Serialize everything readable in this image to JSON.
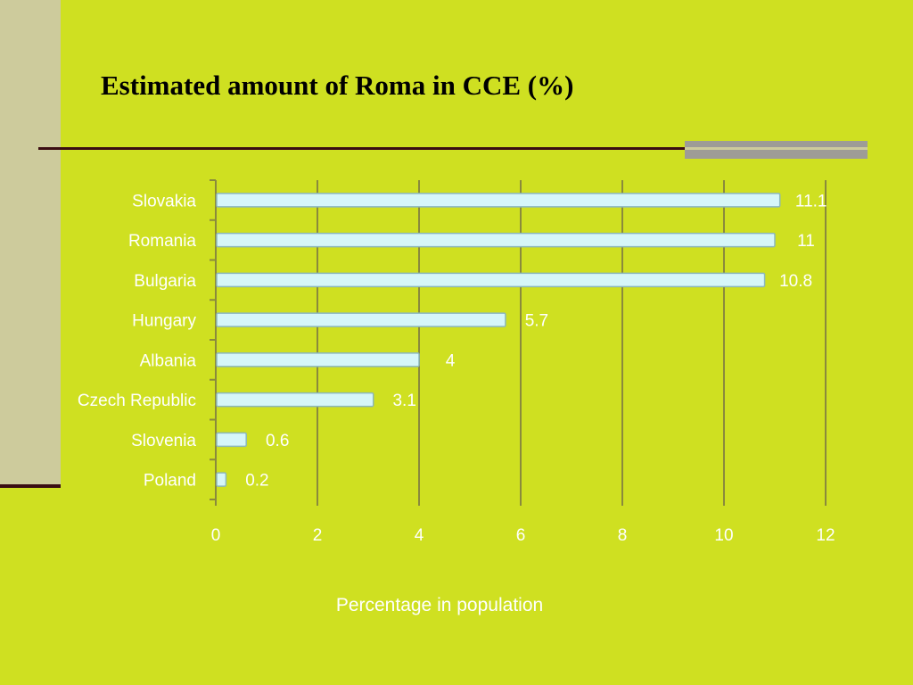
{
  "title": "Estimated amount of Roma in CCE (%)",
  "colors": {
    "background": "#cfe021",
    "bar_fill": "#d6f6f9",
    "bar_stroke": "#8bb7bc",
    "axis": "#8a8a3c",
    "label": "#ffffff"
  },
  "chart_data": {
    "type": "bar",
    "orientation": "horizontal",
    "title": "Estimated amount of Roma in CCE (%)",
    "xlabel": "Percentage in population",
    "ylabel": "",
    "categories": [
      "Slovakia",
      "Romania",
      "Bulgaria",
      "Hungary",
      "Albania",
      "Czech Republic",
      "Slovenia",
      "Poland"
    ],
    "values": [
      11.1,
      11,
      10.8,
      5.7,
      4,
      3.1,
      0.6,
      0.2
    ],
    "data_labels": [
      "11.1",
      "11",
      "10.8",
      "5.7",
      "4",
      "3.1",
      "0.6",
      "0.2"
    ],
    "xlim": [
      0,
      12
    ],
    "xticks": [
      0,
      2,
      4,
      6,
      8,
      10,
      12
    ],
    "grid": "vertical",
    "legend": "none"
  }
}
